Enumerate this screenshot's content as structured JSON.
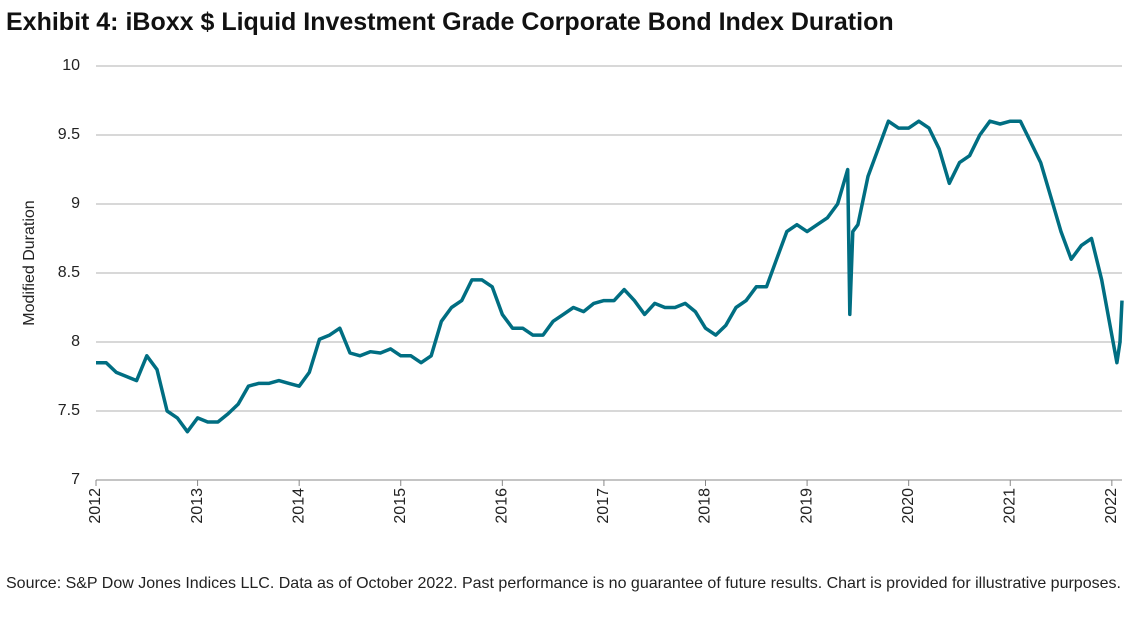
{
  "chart_data": {
    "type": "line",
    "title": "Exhibit 4: iBoxx $ Liquid Investment Grade Corporate Bond Index Duration",
    "ylabel": "Modified Duration",
    "note": "Source: S&P Dow Jones Indices LLC. Data as of October 2022. Past performance is no guarantee of future results. Chart is provided for illustrative purposes.",
    "x": [
      2012.0,
      2012.1,
      2012.2,
      2012.3,
      2012.4,
      2012.5,
      2012.6,
      2012.7,
      2012.8,
      2012.9,
      2013.0,
      2013.1,
      2013.2,
      2013.3,
      2013.4,
      2013.5,
      2013.6,
      2013.7,
      2013.8,
      2013.9,
      2014.0,
      2014.1,
      2014.2,
      2014.3,
      2014.4,
      2014.5,
      2014.6,
      2014.7,
      2014.8,
      2014.9,
      2015.0,
      2015.1,
      2015.2,
      2015.3,
      2015.4,
      2015.5,
      2015.6,
      2015.7,
      2015.8,
      2015.9,
      2016.0,
      2016.1,
      2016.2,
      2016.3,
      2016.4,
      2016.5,
      2016.6,
      2016.7,
      2016.8,
      2016.9,
      2017.0,
      2017.1,
      2017.2,
      2017.3,
      2017.4,
      2017.5,
      2017.6,
      2017.7,
      2017.8,
      2017.9,
      2018.0,
      2018.1,
      2018.2,
      2018.3,
      2018.4,
      2018.5,
      2018.6,
      2018.7,
      2018.8,
      2018.9,
      2019.0,
      2019.1,
      2019.2,
      2019.3,
      2019.4,
      2019.42,
      2019.45,
      2019.5,
      2019.6,
      2019.7,
      2019.8,
      2019.9,
      2020.0,
      2020.1,
      2020.2,
      2020.3,
      2020.4,
      2020.5,
      2020.6,
      2020.7,
      2020.8,
      2020.9,
      2021.0,
      2021.1,
      2021.2,
      2021.3,
      2021.4,
      2021.5,
      2021.6,
      2021.7,
      2021.8,
      2021.9,
      2022.0,
      2022.05,
      2022.08,
      2022.1
    ],
    "series": [
      {
        "name": "Modified Duration",
        "color": "#006e82",
        "values": [
          7.85,
          7.85,
          7.78,
          7.75,
          7.72,
          7.9,
          7.8,
          7.5,
          7.45,
          7.35,
          7.45,
          7.42,
          7.42,
          7.48,
          7.55,
          7.68,
          7.7,
          7.7,
          7.72,
          7.7,
          7.68,
          7.78,
          8.02,
          8.05,
          8.1,
          7.92,
          7.9,
          7.93,
          7.92,
          7.95,
          7.9,
          7.9,
          7.85,
          7.9,
          8.15,
          8.25,
          8.3,
          8.45,
          8.45,
          8.4,
          8.2,
          8.1,
          8.1,
          8.05,
          8.05,
          8.15,
          8.2,
          8.25,
          8.22,
          8.28,
          8.3,
          8.3,
          8.38,
          8.3,
          8.2,
          8.28,
          8.25,
          8.25,
          8.28,
          8.22,
          8.1,
          8.05,
          8.12,
          8.25,
          8.3,
          8.4,
          8.4,
          8.6,
          8.8,
          8.85,
          8.8,
          8.85,
          8.9,
          9.0,
          9.25,
          8.2,
          8.8,
          8.85,
          9.2,
          9.4,
          9.6,
          9.55,
          9.55,
          9.6,
          9.55,
          9.4,
          9.15,
          9.3,
          9.35,
          9.5,
          9.6,
          9.58,
          9.6,
          9.6,
          9.45,
          9.3,
          9.05,
          8.8,
          8.6,
          8.7,
          8.75,
          8.45,
          8.05,
          7.85,
          8.0,
          8.3
        ]
      }
    ],
    "xlim": [
      2012,
      2022.1
    ],
    "xticks": [
      2012,
      2013,
      2014,
      2015,
      2016,
      2017,
      2018,
      2019,
      2020,
      2021,
      2022
    ],
    "ylim": [
      7,
      10
    ],
    "yticks": [
      7,
      7.5,
      8,
      8.5,
      9,
      9.5,
      10
    ],
    "grid": true
  }
}
